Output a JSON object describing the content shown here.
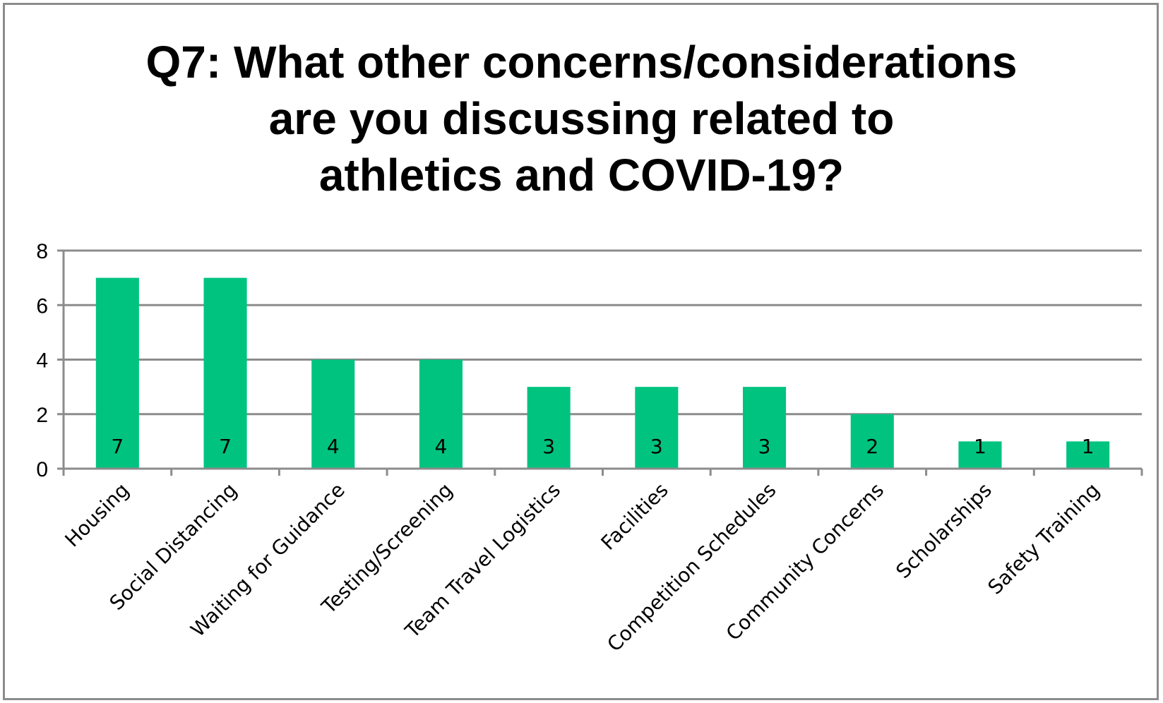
{
  "chart_data": {
    "type": "bar",
    "title": "Q7: What other concerns/considerations\nare you discussing related to\nathletics and COVID-19?",
    "xlabel": "",
    "ylabel": "",
    "categories": [
      "Housing",
      "Social Distancing",
      "Waiting for  Guidance",
      "Testing/Screening",
      "Team Travel Logistics",
      "Facilities",
      "Competition Schedules",
      "Community Concerns",
      "Scholarships",
      "Safety Training"
    ],
    "series": [
      {
        "values": [
          7,
          7,
          4,
          4,
          3,
          3,
          3,
          2,
          1,
          1
        ],
        "color": "#00c380"
      }
    ],
    "data_labels": [
      "7",
      "7",
      "4",
      "4",
      "3",
      "3",
      "3",
      "2",
      "1",
      "1"
    ],
    "ylim": [
      0,
      8
    ],
    "yticks": [
      0,
      2,
      4,
      6,
      8
    ],
    "ytick_labels": [
      "0",
      "2",
      "4",
      "6",
      "8"
    ],
    "grid": true,
    "legend": "none",
    "colors": {
      "bar": "#00c380",
      "grid": "#8c8c8c",
      "frame": "#8c8c8c",
      "text": "#000000"
    }
  }
}
